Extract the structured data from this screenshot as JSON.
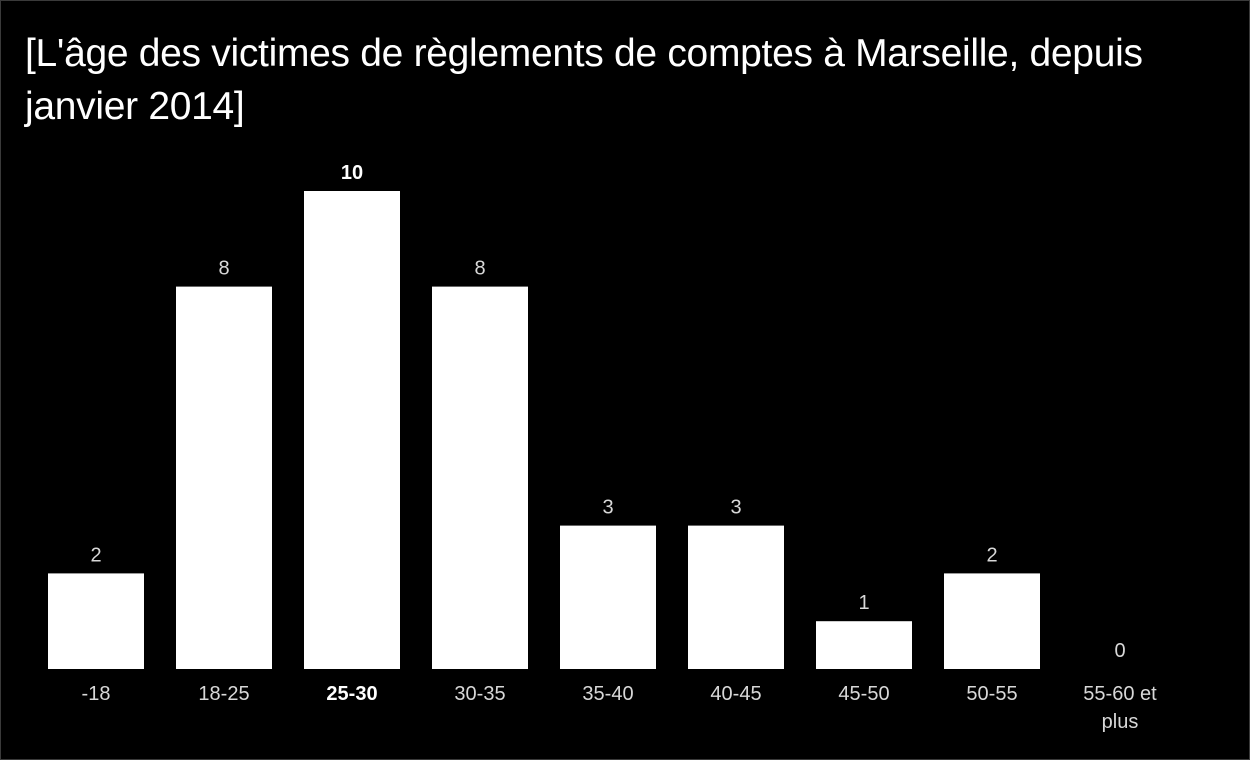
{
  "chart_data": {
    "type": "bar",
    "title": "[L'âge des victimes de règlements de comptes à Marseille, depuis janvier 2014]",
    "categories": [
      "-18",
      "18-25",
      "25-30",
      "30-35",
      "35-40",
      "40-45",
      "45-50",
      "50-55",
      "55-60 et plus"
    ],
    "category_lines": [
      [
        "-18"
      ],
      [
        "18-25"
      ],
      [
        "25-30"
      ],
      [
        "30-35"
      ],
      [
        "35-40"
      ],
      [
        "40-45"
      ],
      [
        "45-50"
      ],
      [
        "50-55"
      ],
      [
        "55-60 et",
        "plus"
      ]
    ],
    "values": [
      2,
      8,
      10,
      8,
      3,
      3,
      1,
      2,
      0
    ],
    "highlight_category": "25-30",
    "ylim": [
      0,
      10
    ],
    "xlabel": "",
    "ylabel": "",
    "grid": false,
    "legend": "none",
    "colors": {
      "background": "#000000",
      "bar": "#ffffff",
      "text": "#ffffff",
      "label": "#d8d8d8"
    }
  }
}
